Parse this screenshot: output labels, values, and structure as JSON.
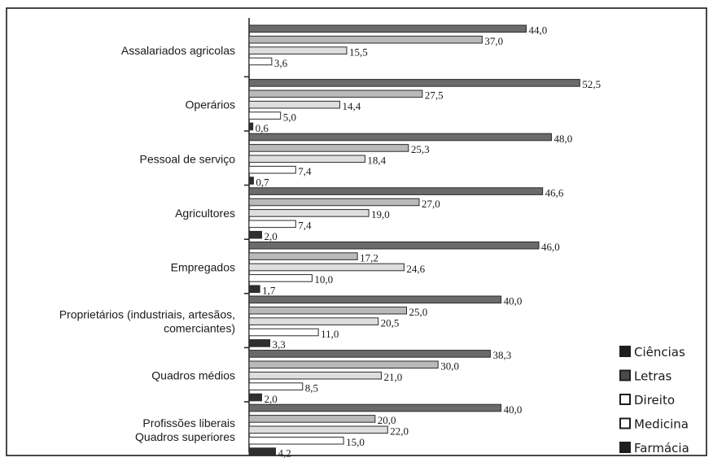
{
  "chart_data": {
    "type": "bar",
    "orientation": "horizontal",
    "xlim": [
      0,
      55
    ],
    "categories": [
      [
        "Assalariados agricolas"
      ],
      [
        "Operários"
      ],
      [
        "Pessoal de serviço"
      ],
      [
        "Agricultores"
      ],
      [
        "Empregados"
      ],
      [
        "Proprietários (industriais, artesãos,",
        "comerciantes)"
      ],
      [
        "Quadros médios"
      ],
      [
        "Profissões liberais",
        "Quadros superiores"
      ]
    ],
    "series": [
      {
        "name": "Ciências",
        "values": [
          44.0,
          52.5,
          48.0,
          46.6,
          46.0,
          40.0,
          38.3,
          40.0
        ],
        "labels": [
          "44,0",
          "52,5",
          "48,0",
          "46,6",
          "46,0",
          "40,0",
          "38,3",
          "40,0"
        ]
      },
      {
        "name": "Letras",
        "values": [
          37.0,
          27.5,
          25.3,
          27.0,
          17.2,
          25.0,
          30.0,
          20.0
        ],
        "labels": [
          "37,0",
          "27,5",
          "25,3",
          "27,0",
          "17,2",
          "25,0",
          "30,0",
          "20,0"
        ]
      },
      {
        "name": "Direito",
        "values": [
          15.5,
          14.4,
          18.4,
          19.0,
          24.6,
          20.5,
          21.0,
          22.0
        ],
        "labels": [
          "15,5",
          "14,4",
          "18,4",
          "19,0",
          "24,6",
          "20,5",
          "21,0",
          "22,0"
        ]
      },
      {
        "name": "Medicina",
        "values": [
          3.6,
          5.0,
          7.4,
          7.4,
          10.0,
          11.0,
          8.5,
          15.0
        ],
        "labels": [
          "3,6",
          "5,0",
          "7,4",
          "7,4",
          "10,0",
          "11,0",
          "8,5",
          "15,0"
        ]
      },
      {
        "name": "Farmácia",
        "values": [
          0,
          0.6,
          0.7,
          2.0,
          1.7,
          3.3,
          2.0,
          4.2
        ],
        "labels": [
          "",
          "0,6",
          "0,7",
          "2,0",
          "1,7",
          "3,3",
          "2,0",
          "4,2"
        ]
      }
    ],
    "legend": "bottom-right",
    "grid": false,
    "colors": {
      "Ciências": "#6b6b6b",
      "Letras": "#b9b9b9",
      "Direito": "#dedede",
      "Medicina": "#ffffff",
      "Farmácia": "#2e2e2e"
    },
    "legend_swatch_colors": {
      "Ciências": "#1e1e1e",
      "Letras": "#4a4a4a",
      "Direito": "#ffffff",
      "Medicina": "#ffffff",
      "Farmácia": "#1e1e1e"
    }
  }
}
